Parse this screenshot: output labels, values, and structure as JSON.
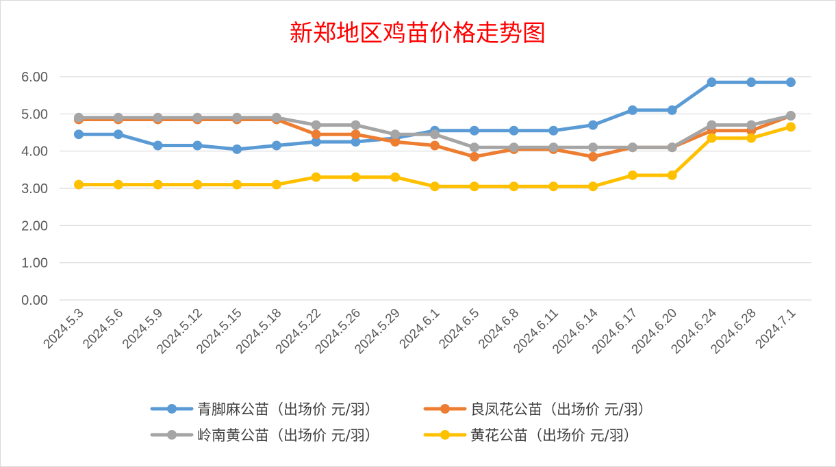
{
  "chart_data": {
    "type": "line",
    "title": "新郑地区鸡苗价格走势图",
    "xlabel": "",
    "ylabel": "",
    "ylim": [
      0,
      6
    ],
    "yticks": [
      "0.00",
      "1.00",
      "2.00",
      "3.00",
      "4.00",
      "5.00",
      "6.00"
    ],
    "grid": true,
    "legend_position": "bottom",
    "categories": [
      "2024.5.3",
      "2024.5.6",
      "2024.5.9",
      "2024.5.12",
      "2024.5.15",
      "2024.5.18",
      "2024.5.22",
      "2024.5.26",
      "2024.5.29",
      "2024.6.1",
      "2024.6.5",
      "2024.6.8",
      "2024.6.11",
      "2024.6.14",
      "2024.6.17",
      "2024.6.20",
      "2024.6.24",
      "2024.6.28",
      "2024.7.1"
    ],
    "series": [
      {
        "name": "青脚麻公苗（出场价 元/羽）",
        "color": "#5b9bd5",
        "values": [
          4.45,
          4.45,
          4.15,
          4.15,
          4.05,
          4.15,
          4.25,
          4.25,
          4.35,
          4.55,
          4.55,
          4.55,
          4.55,
          4.7,
          5.1,
          5.1,
          5.85,
          5.85,
          5.85
        ]
      },
      {
        "name": "良凤花公苗（出场价 元/羽）",
        "color": "#ed7d31",
        "values": [
          4.85,
          4.85,
          4.85,
          4.85,
          4.85,
          4.85,
          4.45,
          4.45,
          4.25,
          4.15,
          3.85,
          4.05,
          4.05,
          3.85,
          4.1,
          4.1,
          4.55,
          4.55,
          4.95
        ]
      },
      {
        "name": "岭南黄公苗（出场价 元/羽）",
        "color": "#a5a5a5",
        "values": [
          4.9,
          4.9,
          4.9,
          4.9,
          4.9,
          4.9,
          4.7,
          4.7,
          4.45,
          4.45,
          4.1,
          4.1,
          4.1,
          4.1,
          4.1,
          4.1,
          4.7,
          4.7,
          4.95
        ]
      },
      {
        "name": "黄花公苗（出场价 元/羽）",
        "color": "#ffc000",
        "values": [
          3.1,
          3.1,
          3.1,
          3.1,
          3.1,
          3.1,
          3.3,
          3.3,
          3.3,
          3.05,
          3.05,
          3.05,
          3.05,
          3.05,
          3.35,
          3.35,
          4.35,
          4.35,
          4.65
        ]
      }
    ]
  }
}
